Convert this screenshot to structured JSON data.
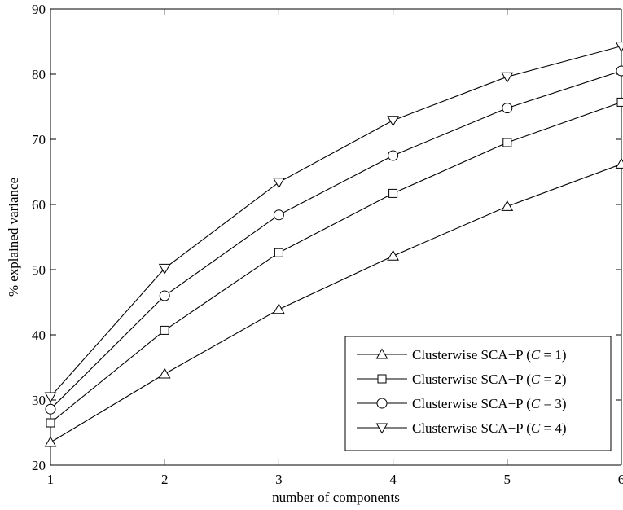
{
  "chart_data": {
    "type": "line",
    "title": "",
    "xlabel": "number of components",
    "ylabel": "% explained variance",
    "x": [
      1,
      2,
      3,
      4,
      5,
      6
    ],
    "xlim": [
      1,
      6
    ],
    "ylim": [
      20,
      90
    ],
    "xticks": [
      "1",
      "2",
      "3",
      "4",
      "5",
      "6"
    ],
    "yticks": [
      "20",
      "30",
      "40",
      "50",
      "60",
      "70",
      "80",
      "90"
    ],
    "grid": false,
    "legend_position": "bottom-right",
    "line_color": "#000000",
    "series": [
      {
        "name_prefix": "Clusterwise SCA−P (",
        "name_var": "C",
        "name_suffix": " = 1)",
        "marker": "triangle-up",
        "values": [
          23.5,
          34.0,
          43.9,
          52.1,
          59.7,
          66.2
        ]
      },
      {
        "name_prefix": "Clusterwise SCA−P (",
        "name_var": "C",
        "name_suffix": " = 2)",
        "marker": "square",
        "values": [
          26.5,
          40.7,
          52.6,
          61.7,
          69.5,
          75.7
        ]
      },
      {
        "name_prefix": "Clusterwise SCA−P (",
        "name_var": "C",
        "name_suffix": " = 3)",
        "marker": "circle",
        "values": [
          28.6,
          46.0,
          58.4,
          67.5,
          74.8,
          80.5
        ]
      },
      {
        "name_prefix": "Clusterwise SCA−P (",
        "name_var": "C",
        "name_suffix": " = 4)",
        "marker": "triangle-down",
        "values": [
          30.5,
          50.2,
          63.4,
          72.9,
          79.6,
          84.3
        ]
      }
    ]
  }
}
